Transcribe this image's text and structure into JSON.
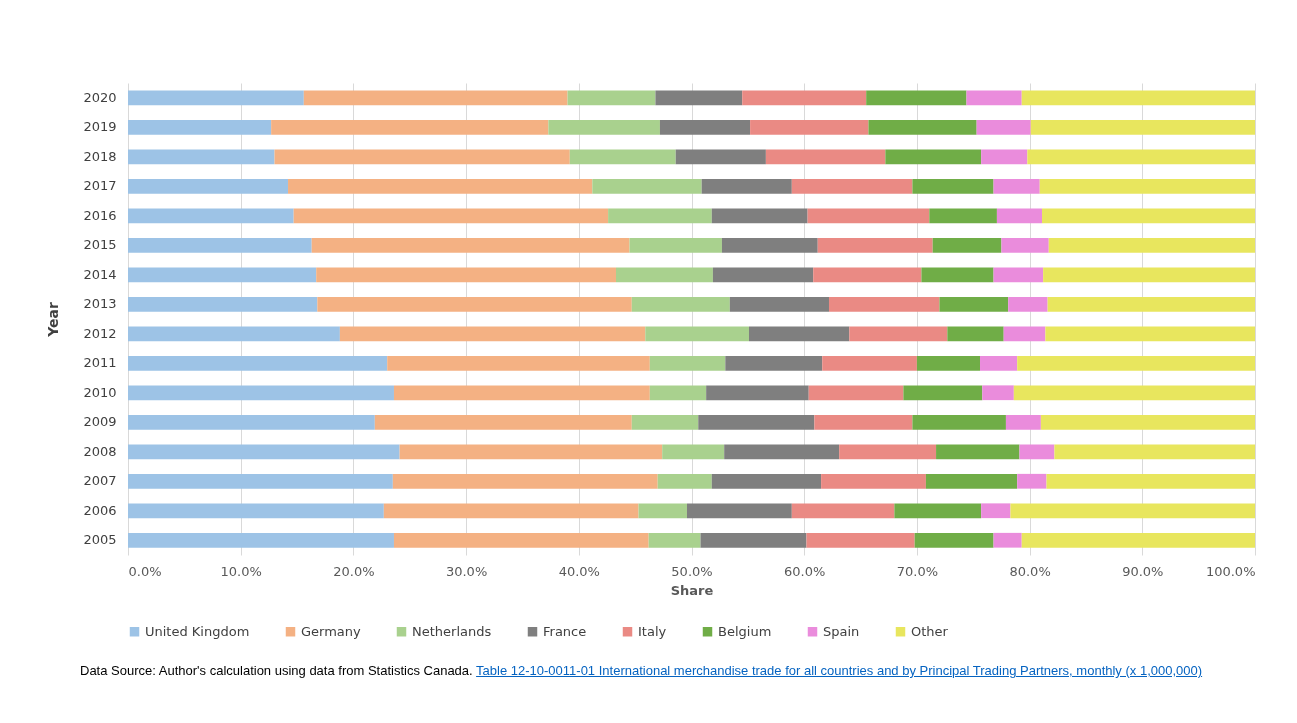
{
  "chart_data": {
    "type": "bar",
    "orientation": "horizontal",
    "stacked": true,
    "xlabel": "Share",
    "ylabel": "Year",
    "categories": [
      "2020",
      "2019",
      "2018",
      "2017",
      "2016",
      "2015",
      "2014",
      "2013",
      "2012",
      "2011",
      "2010",
      "2009",
      "2008",
      "2007",
      "2006",
      "2005"
    ],
    "series": [
      {
        "name": "United Kingdom",
        "color": "#9dc3e6",
        "values": [
          15.6,
          12.7,
          13.0,
          14.2,
          14.7,
          16.3,
          16.7,
          16.8,
          18.8,
          23.0,
          23.6,
          21.9,
          24.1,
          23.5,
          22.7,
          23.6
        ]
      },
      {
        "name": "Germany",
        "color": "#f4b183",
        "values": [
          23.4,
          24.6,
          26.2,
          27.0,
          27.9,
          28.2,
          26.6,
          27.9,
          27.1,
          23.3,
          22.7,
          22.8,
          23.3,
          23.5,
          22.6,
          22.6
        ]
      },
      {
        "name": "Netherlands",
        "color": "#a9d18e",
        "values": [
          7.8,
          9.9,
          9.4,
          9.7,
          9.2,
          8.2,
          8.6,
          8.7,
          9.2,
          6.7,
          5.0,
          5.9,
          5.5,
          4.8,
          4.3,
          4.6
        ]
      },
      {
        "name": "France",
        "color": "#7f7f7f",
        "values": [
          7.7,
          8.0,
          8.0,
          8.0,
          8.5,
          8.5,
          8.9,
          8.8,
          8.9,
          8.6,
          9.1,
          10.3,
          10.2,
          9.7,
          9.3,
          9.4
        ]
      },
      {
        "name": "Italy",
        "color": "#ea8a84",
        "values": [
          11.0,
          10.5,
          10.6,
          10.7,
          10.8,
          10.2,
          9.6,
          9.8,
          8.7,
          8.4,
          8.4,
          8.7,
          8.6,
          9.3,
          9.1,
          9.6
        ]
      },
      {
        "name": "Belgium",
        "color": "#70ad47",
        "values": [
          8.9,
          9.6,
          8.5,
          7.2,
          6.0,
          6.1,
          6.4,
          6.1,
          5.0,
          5.6,
          7.0,
          8.3,
          7.4,
          8.1,
          7.7,
          7.0
        ]
      },
      {
        "name": "Spain",
        "color": "#ea8cdc",
        "values": [
          4.9,
          4.8,
          4.1,
          4.1,
          4.0,
          4.2,
          4.4,
          3.5,
          3.7,
          3.3,
          2.8,
          3.1,
          3.1,
          2.6,
          2.6,
          2.5
        ]
      },
      {
        "name": "Other",
        "color": "#e8e65e",
        "values": [
          20.7,
          19.9,
          20.2,
          19.1,
          18.9,
          18.3,
          18.8,
          18.4,
          18.6,
          21.1,
          21.4,
          19.0,
          17.8,
          18.5,
          21.7,
          20.7
        ]
      }
    ],
    "xlim": [
      0,
      100
    ],
    "xticks": [
      {
        "value": 0,
        "label": "0.0%"
      },
      {
        "value": 10,
        "label": "10.0%"
      },
      {
        "value": 20,
        "label": "20.0%"
      },
      {
        "value": 30,
        "label": "30.0%"
      },
      {
        "value": 40,
        "label": "40.0%"
      },
      {
        "value": 50,
        "label": "50.0%"
      },
      {
        "value": 60,
        "label": "60.0%"
      },
      {
        "value": 70,
        "label": "70.0%"
      },
      {
        "value": 80,
        "label": "80.0%"
      },
      {
        "value": 90,
        "label": "90.0%"
      },
      {
        "value": 100,
        "label": "100.0%"
      }
    ],
    "grid": "x",
    "legend": "bottom",
    "annotations": [
      "Data Source: Author's calculation using data from Statistics Canada.",
      "Table 12-10-0011-01  International merchandise trade for all countries and by Principal Trading Partners, monthly (x 1,000,000)"
    ]
  }
}
